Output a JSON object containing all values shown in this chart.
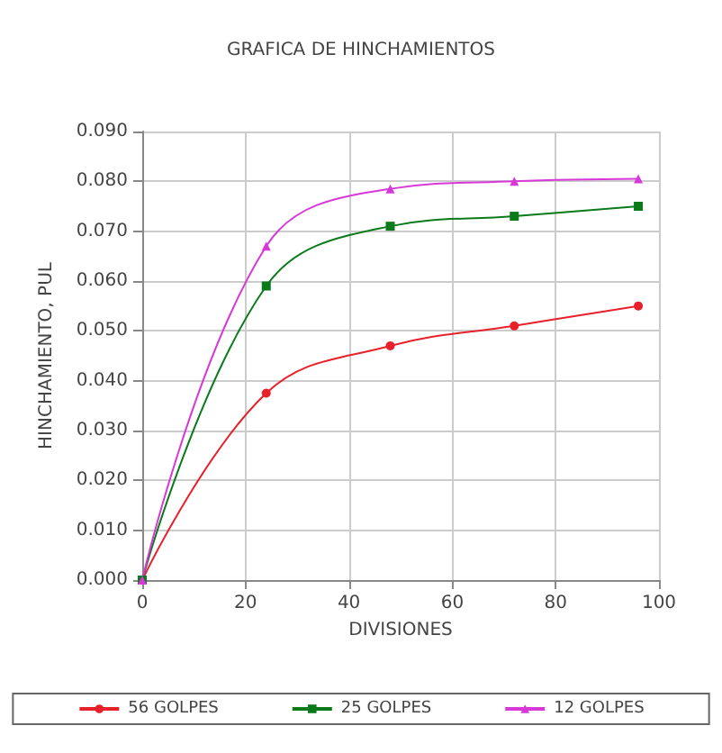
{
  "chart_data": {
    "type": "line",
    "title": "GRAFICA DE HINCHAMIENTOS",
    "xlabel": "DIVISIONES",
    "ylabel": "HINCHAMIENTO, PUL",
    "x": [
      0,
      24,
      48,
      72,
      96
    ],
    "series": [
      {
        "name": "56 GOLPES",
        "color": "#e8202a",
        "marker": "circle",
        "values": [
          0,
          0.0375,
          0.047,
          0.051,
          0.055
        ]
      },
      {
        "name": "25 GOLPES",
        "color": "#0a7a1a",
        "marker": "square",
        "values": [
          0,
          0.059,
          0.071,
          0.073,
          0.075
        ]
      },
      {
        "name": "12 GOLPES",
        "color": "#d838d8",
        "marker": "triangle",
        "values": [
          0,
          0.067,
          0.0785,
          0.08,
          0.0805
        ]
      }
    ],
    "xlim": [
      0,
      100
    ],
    "xticks": [
      0,
      20,
      40,
      60,
      80,
      100
    ],
    "ylim": [
      0,
      0.09
    ],
    "yticks": [
      {
        "value": 0,
        "label": "0.000"
      },
      {
        "value": 0.01,
        "label": "0.010"
      },
      {
        "value": 0.02,
        "label": "0.020"
      },
      {
        "value": 0.03,
        "label": "0.030"
      },
      {
        "value": 0.04,
        "label": "0.040"
      },
      {
        "value": 0.05,
        "label": "0.050"
      },
      {
        "value": 0.06,
        "label": "0.060"
      },
      {
        "value": 0.07,
        "label": "0.070"
      },
      {
        "value": 0.08,
        "label": "0.080"
      },
      {
        "value": 0.09,
        "label": "0.090"
      }
    ],
    "grid": true,
    "legend": "bottom",
    "line_style": "solid"
  }
}
